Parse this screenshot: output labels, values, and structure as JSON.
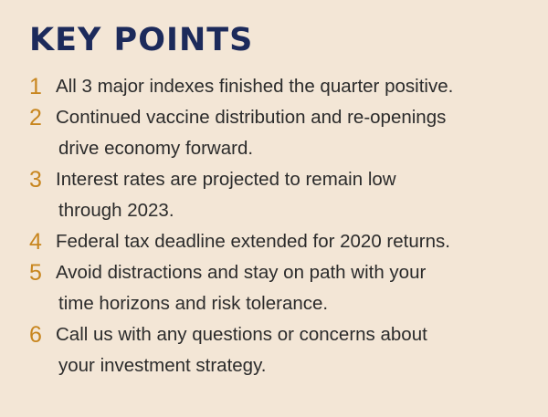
{
  "title": "KEY POINTS",
  "accent_color": "#c8861f",
  "title_color": "#1c2a5b",
  "background_color": "#f3e6d6",
  "points": [
    {
      "num": "1",
      "lines": [
        "All 3 major indexes finished the quarter positive."
      ]
    },
    {
      "num": "2",
      "lines": [
        "Continued vaccine distribution and re-openings",
        "drive economy forward."
      ]
    },
    {
      "num": "3",
      "lines": [
        "Interest rates are projected to remain low",
        "through 2023."
      ]
    },
    {
      "num": "4",
      "lines": [
        "Federal tax deadline extended for 2020 returns."
      ]
    },
    {
      "num": "5",
      "lines": [
        "Avoid distractions and stay on path with your",
        "time horizons and risk tolerance."
      ]
    },
    {
      "num": "6",
      "lines": [
        "Call us with any questions or concerns about",
        "your investment strategy."
      ]
    }
  ]
}
